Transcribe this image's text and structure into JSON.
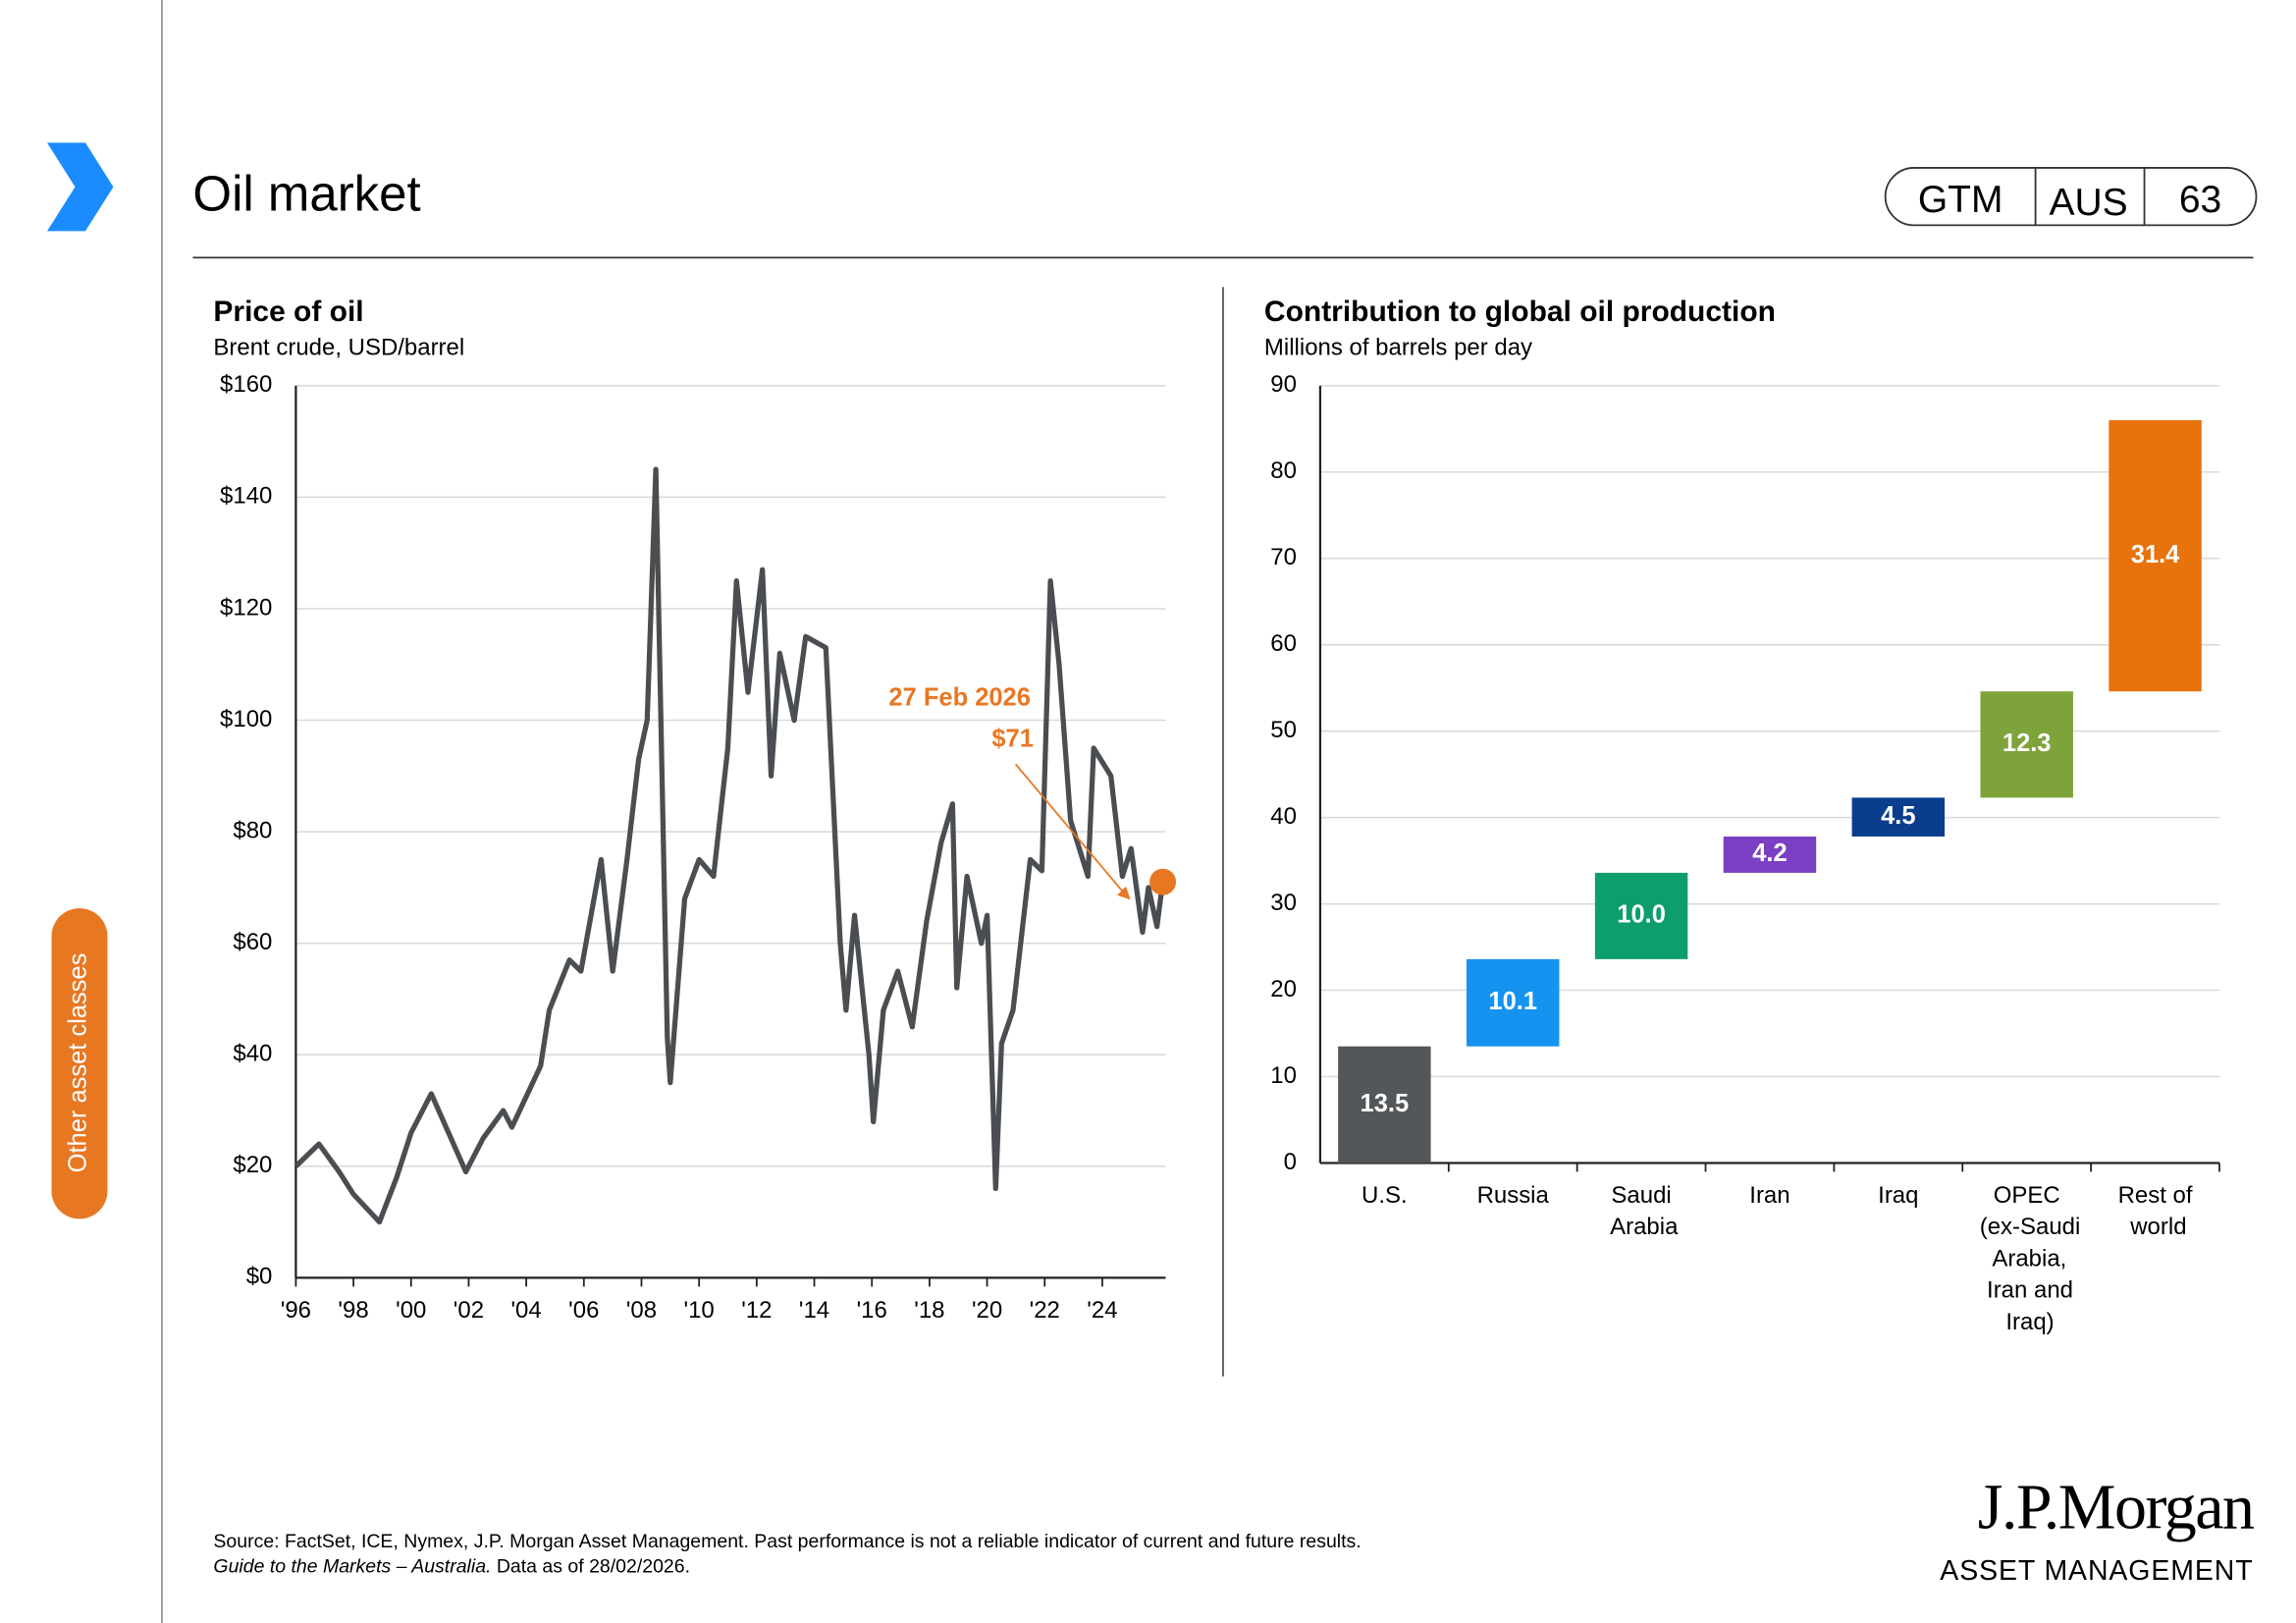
{
  "header": {
    "title": "Oil market",
    "badge": [
      "GTM",
      "AUS",
      "63"
    ]
  },
  "sidebar": {
    "label": "Other asset classes"
  },
  "chart_data": [
    {
      "type": "line",
      "title": "Price of oil",
      "subtitle": "Brent crude, USD/barrel",
      "color": "#4a4e52",
      "x": [
        1996,
        1996.8,
        1997.5,
        1998,
        1998.9,
        1999.5,
        2000,
        2000.7,
        2001.9,
        2002.5,
        2003.2,
        2003.5,
        2004.5,
        2004.8,
        2005.5,
        2005.9,
        2006.6,
        2007.0,
        2007.5,
        2007.9,
        2008.2,
        2008.5,
        2008.9,
        2009.0,
        2009.5,
        2010.0,
        2010.5,
        2011.0,
        2011.3,
        2011.7,
        2012.2,
        2012.5,
        2012.8,
        2013.3,
        2013.7,
        2014.4,
        2014.9,
        2015.1,
        2015.4,
        2015.9,
        2016.05,
        2016.4,
        2016.9,
        2017.4,
        2017.9,
        2018.4,
        2018.8,
        2018.95,
        2019.3,
        2019.8,
        2020.0,
        2020.3,
        2020.5,
        2020.9,
        2021.5,
        2021.9,
        2022.2,
        2022.5,
        2022.9,
        2023.5,
        2023.7,
        2024.3,
        2024.7,
        2025.0,
        2025.4,
        2025.6,
        2025.9,
        2026.1
      ],
      "values": [
        20,
        24,
        19,
        15,
        10,
        18,
        26,
        33,
        19,
        25,
        30,
        27,
        38,
        48,
        57,
        55,
        75,
        55,
        75,
        93,
        100,
        145,
        43,
        35,
        68,
        75,
        72,
        95,
        125,
        105,
        127,
        90,
        112,
        100,
        115,
        113,
        60,
        48,
        65,
        40,
        28,
        48,
        55,
        45,
        64,
        78,
        85,
        52,
        72,
        60,
        65,
        16,
        42,
        48,
        75,
        73,
        125,
        110,
        82,
        72,
        95,
        90,
        72,
        77,
        62,
        70,
        63,
        71
      ],
      "xlim": [
        1996,
        2026.2
      ],
      "xticks": [
        {
          "value": 1996,
          "label": "'96"
        },
        {
          "value": 1998,
          "label": "'98"
        },
        {
          "value": 2000,
          "label": "'00"
        },
        {
          "value": 2002,
          "label": "'02"
        },
        {
          "value": 2004,
          "label": "'04"
        },
        {
          "value": 2006,
          "label": "'06"
        },
        {
          "value": 2008,
          "label": "'08"
        },
        {
          "value": 2010,
          "label": "'10"
        },
        {
          "value": 2012,
          "label": "'12"
        },
        {
          "value": 2014,
          "label": "'14"
        },
        {
          "value": 2016,
          "label": "'16"
        },
        {
          "value": 2018,
          "label": "'18"
        },
        {
          "value": 2020,
          "label": "'20"
        },
        {
          "value": 2022,
          "label": "'22"
        },
        {
          "value": 2024,
          "label": "'24"
        }
      ],
      "ylim": [
        0,
        160
      ],
      "yticks": [
        {
          "value": 0,
          "label": "$0"
        },
        {
          "value": 20,
          "label": "$20"
        },
        {
          "value": 40,
          "label": "$40"
        },
        {
          "value": 60,
          "label": "$60"
        },
        {
          "value": 80,
          "label": "$80"
        },
        {
          "value": 100,
          "label": "$100"
        },
        {
          "value": 120,
          "label": "$120"
        },
        {
          "value": 140,
          "label": "$140"
        },
        {
          "value": 160,
          "label": "$160"
        }
      ],
      "grid": true,
      "annotation": {
        "date": "27 Feb 2026",
        "value": 71,
        "value_label": "$71",
        "color": "#e87722"
      }
    },
    {
      "type": "waterfall",
      "title": "Contribution to global oil production",
      "subtitle": "Millions of barrels per day",
      "categories": [
        "U.S.",
        "Russia",
        "Saudi Arabia",
        "Iran",
        "Iraq",
        "OPEC (ex-Saudi Arabia, Iran and Iraq)",
        "Rest of world"
      ],
      "values": [
        13.5,
        10.1,
        10.0,
        4.2,
        4.5,
        12.3,
        31.4
      ],
      "value_labels": [
        "13.5",
        "10.1",
        "10.0",
        "4.2",
        "4.5",
        "12.3",
        "31.4"
      ],
      "colors": [
        "#54575a",
        "#1593f0",
        "#0e9e6e",
        "#7b3fc4",
        "#0a3d8c",
        "#7ea33a",
        "#e8720c"
      ],
      "ylim": [
        0,
        90
      ],
      "yticks": [
        0,
        10,
        20,
        30,
        40,
        50,
        60,
        70,
        80,
        90
      ],
      "grid": true
    }
  ],
  "footer": {
    "source": "Source: FactSet, ICE, Nymex, J.P. Morgan Asset Management. Past performance is not a reliable indicator of current and future results.",
    "guide": "Guide to the Markets – Australia.",
    "asof": " Data as of 28/02/2026.",
    "logo": "J.P.Morgan",
    "logo_sub": "ASSET MANAGEMENT"
  }
}
